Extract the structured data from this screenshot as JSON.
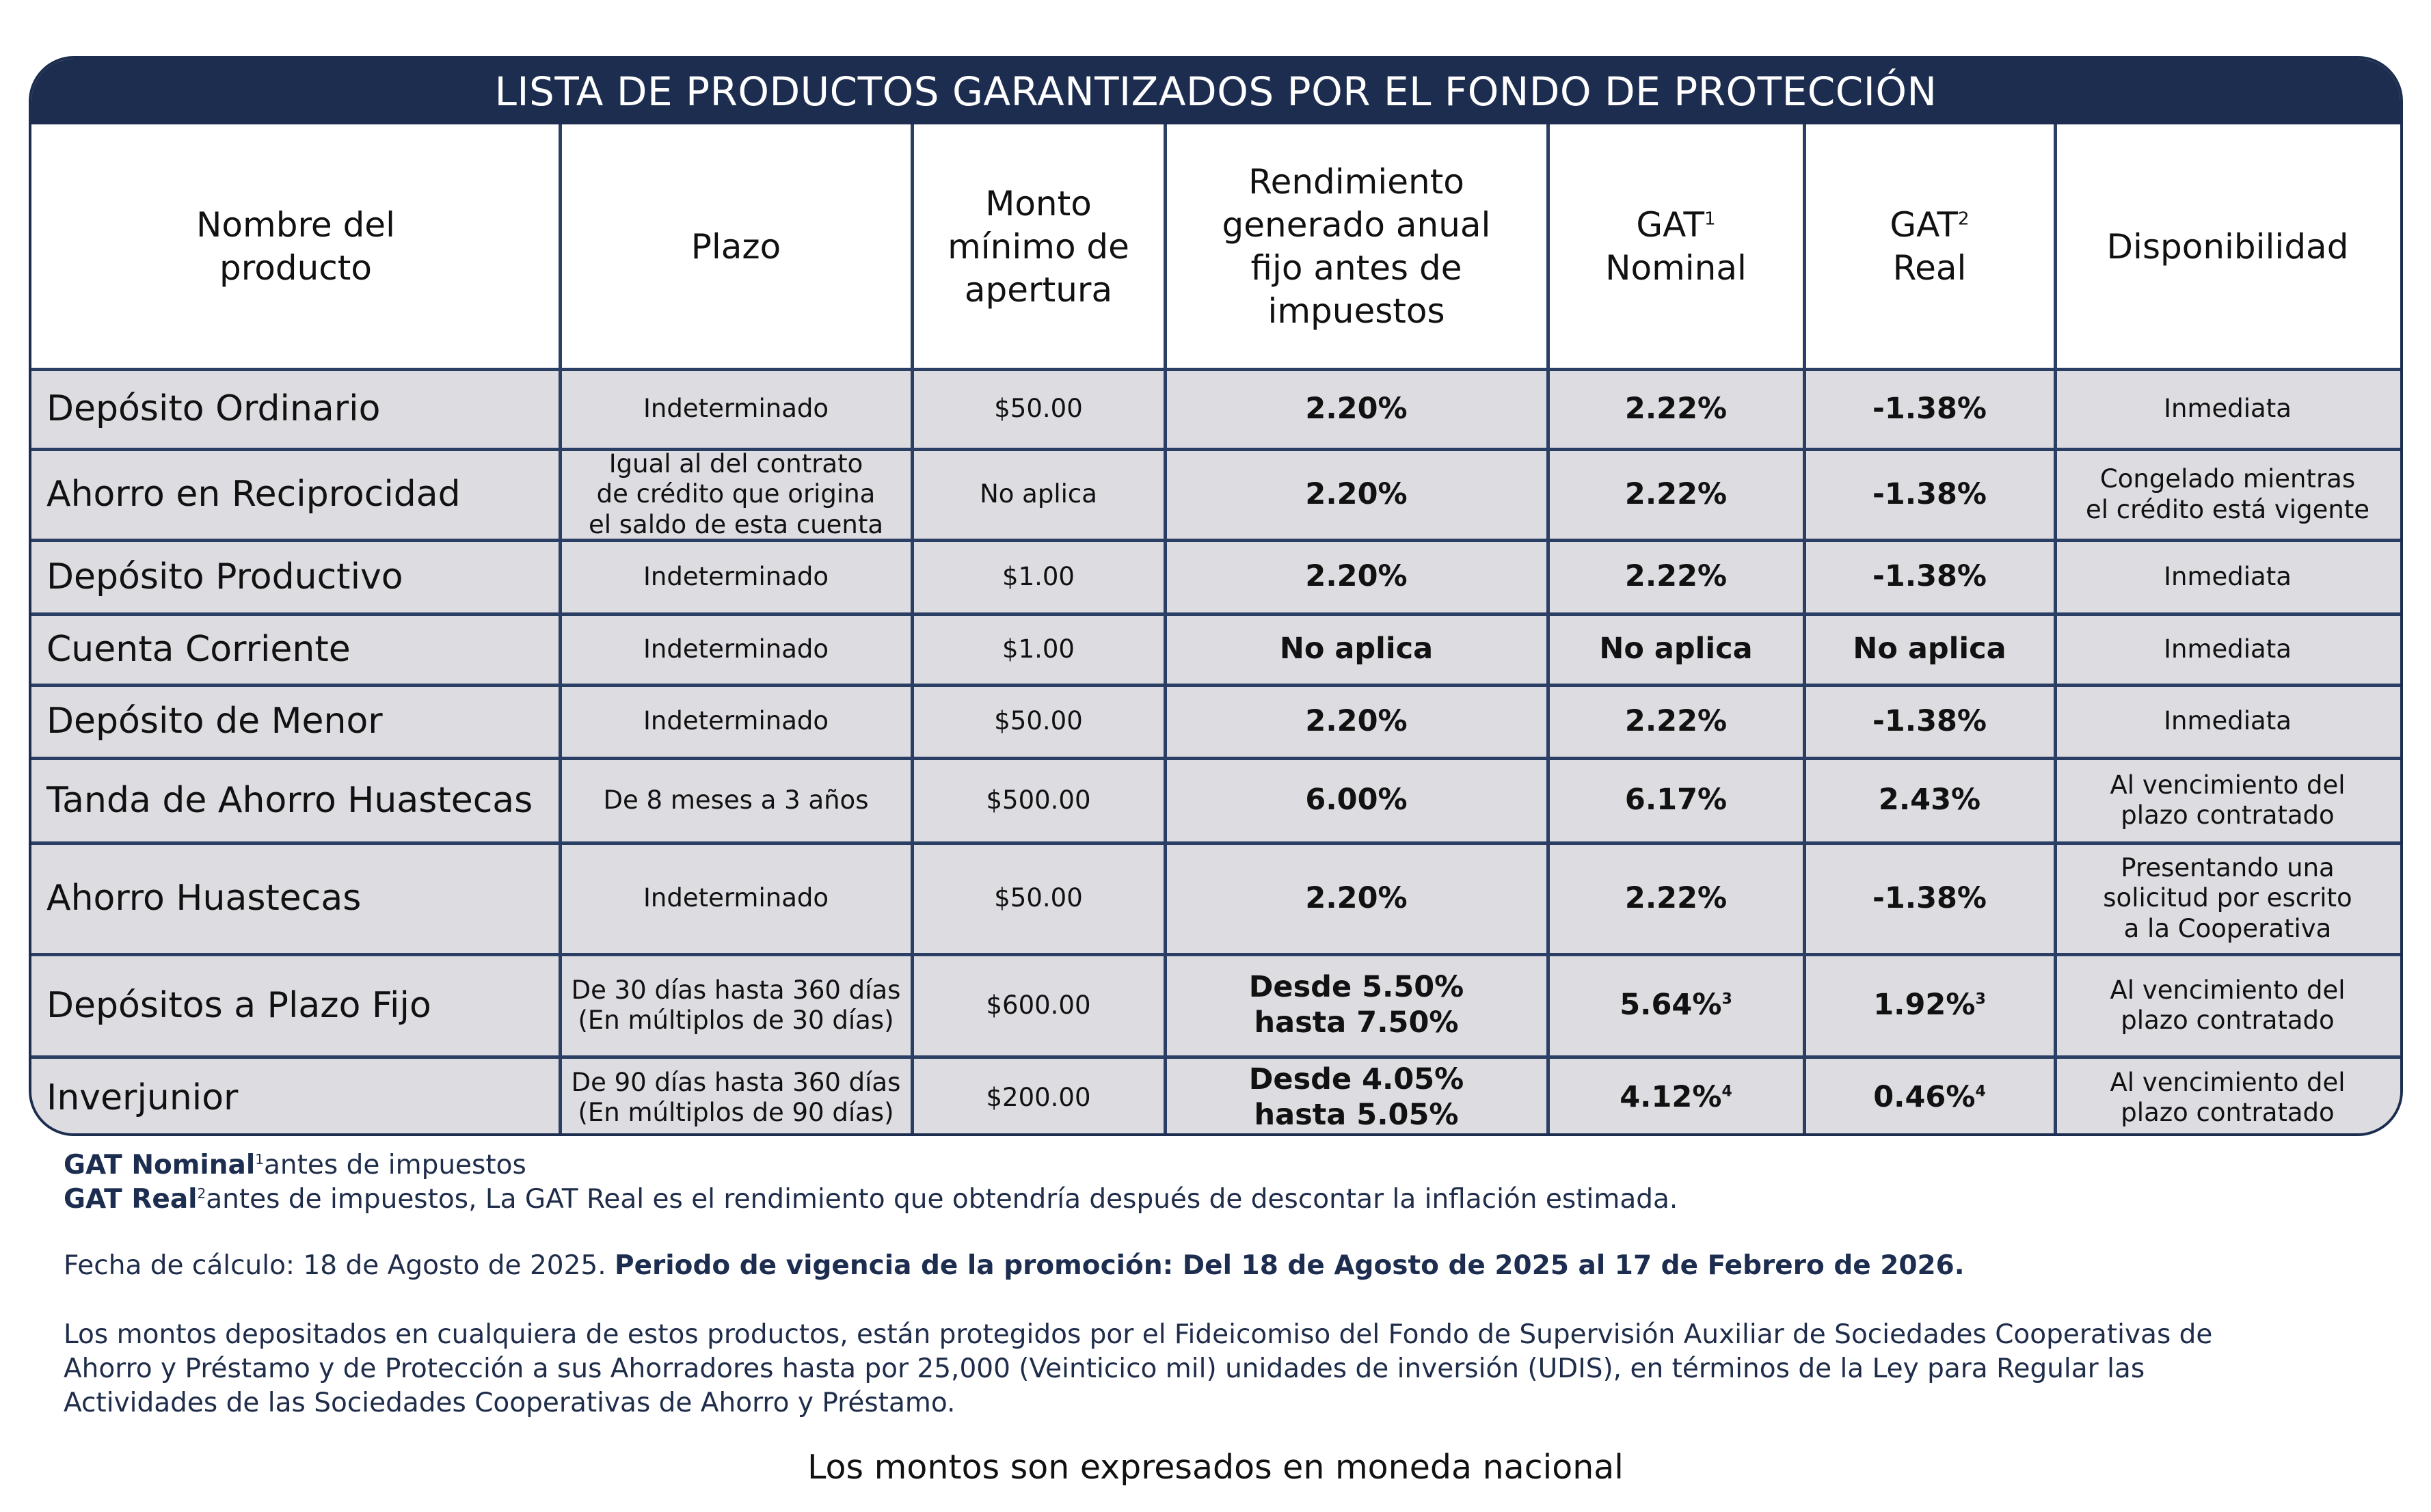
{
  "title": "LISTA DE PRODUCTOS GARANTIZADOS POR EL FONDO DE PROTECCIÓN",
  "colors": {
    "navy": "#1c2d4f",
    "row_gray": "#dcdce1"
  },
  "headers": {
    "nombre": [
      "Nombre del",
      "producto"
    ],
    "plazo": "Plazo",
    "monto": [
      "Monto",
      "mínimo de",
      "apertura"
    ],
    "rendimiento": [
      "Rendimiento",
      "generado anual",
      "fijo antes de",
      "impuestos"
    ],
    "gat_nominal": {
      "l1": "GAT",
      "sup": "1",
      "l2": "Nominal"
    },
    "gat_real": {
      "l1": "GAT",
      "sup": "2",
      "l2": "Real"
    },
    "disponibilidad": "Disponibilidad"
  },
  "rows": [
    {
      "name": "Depósito Ordinario",
      "plazo": [
        "Indeterminado"
      ],
      "monto": "$50.00",
      "rendimiento": [
        "2.20%"
      ],
      "gat_nominal": "2.22%",
      "gat_nominal_note": "",
      "gat_real": "-1.38%",
      "gat_real_note": "",
      "disponibilidad": [
        "Inmediata"
      ]
    },
    {
      "name": "Ahorro en Reciprocidad",
      "plazo": [
        "Igual al del contrato",
        "de crédito que origina",
        "el saldo de esta cuenta"
      ],
      "monto": "No aplica",
      "rendimiento": [
        "2.20%"
      ],
      "gat_nominal": "2.22%",
      "gat_nominal_note": "",
      "gat_real": "-1.38%",
      "gat_real_note": "",
      "disponibilidad": [
        "Congelado mientras",
        "el crédito está vigente"
      ]
    },
    {
      "name": "Depósito Productivo",
      "plazo": [
        "Indeterminado"
      ],
      "monto": "$1.00",
      "rendimiento": [
        "2.20%"
      ],
      "gat_nominal": "2.22%",
      "gat_nominal_note": "",
      "gat_real": "-1.38%",
      "gat_real_note": "",
      "disponibilidad": [
        "Inmediata"
      ]
    },
    {
      "name": "Cuenta Corriente",
      "plazo": [
        "Indeterminado"
      ],
      "monto": "$1.00",
      "rendimiento": [
        "No aplica"
      ],
      "gat_nominal": "No aplica",
      "gat_nominal_note": "",
      "gat_real": "No aplica",
      "gat_real_note": "",
      "disponibilidad": [
        "Inmediata"
      ]
    },
    {
      "name": "Depósito de Menor",
      "plazo": [
        "Indeterminado"
      ],
      "monto": "$50.00",
      "rendimiento": [
        "2.20%"
      ],
      "gat_nominal": "2.22%",
      "gat_nominal_note": "",
      "gat_real": "-1.38%",
      "gat_real_note": "",
      "disponibilidad": [
        "Inmediata"
      ]
    },
    {
      "name": "Tanda de Ahorro Huastecas",
      "plazo": [
        "De 8 meses a 3 años"
      ],
      "monto": "$500.00",
      "rendimiento": [
        "6.00%"
      ],
      "gat_nominal": "6.17%",
      "gat_nominal_note": "",
      "gat_real": "2.43%",
      "gat_real_note": "",
      "disponibilidad": [
        "Al vencimiento del",
        "plazo contratado"
      ]
    },
    {
      "name": "Ahorro Huastecas",
      "plazo": [
        "Indeterminado"
      ],
      "monto": "$50.00",
      "rendimiento": [
        "2.20%"
      ],
      "gat_nominal": "2.22%",
      "gat_nominal_note": "",
      "gat_real": "-1.38%",
      "gat_real_note": "",
      "disponibilidad": [
        "Presentando una",
        "solicitud por escrito",
        "a la Cooperativa"
      ]
    },
    {
      "name": "Depósitos a Plazo Fijo",
      "plazo": [
        "De 30 días hasta 360 días",
        "(En múltiplos de 30 días)"
      ],
      "monto": "$600.00",
      "rendimiento": [
        "Desde 5.50%",
        "hasta 7.50%"
      ],
      "gat_nominal": "5.64%",
      "gat_nominal_note": "3",
      "gat_real": "1.92%",
      "gat_real_note": "3",
      "disponibilidad": [
        "Al vencimiento del",
        "plazo contratado"
      ]
    },
    {
      "name": "Inverjunior",
      "plazo": [
        "De 90 días hasta 360 días",
        "(En múltiplos de 90 días)"
      ],
      "monto": "$200.00",
      "rendimiento": [
        "Desde 4.05%",
        "hasta 5.05%"
      ],
      "gat_nominal": "4.12%",
      "gat_nominal_note": "4",
      "gat_real": "0.46%",
      "gat_real_note": "4",
      "disponibilidad": [
        "Al vencimiento del",
        "plazo contratado"
      ]
    }
  ],
  "notes": {
    "gat_nominal_label": "GAT Nominal",
    "gat_nominal_sup": "1",
    "gat_nominal_text": "antes de impuestos",
    "gat_real_label": "GAT Real",
    "gat_real_sup": "2",
    "gat_real_text": "antes de impuestos, La GAT Real es el rendimiento que obtendría después de descontar la inflación estimada.",
    "fecha_calculo": "Fecha de cálculo: 18 de Agosto de 2025.",
    "periodo": "Periodo de vigencia de la promoción: Del 18 de Agosto de 2025 al 17 de Febrero de 2026.",
    "disclaimer_lines": [
      "Los montos depositados en cualquiera de estos productos, están protegidos por el Fideicomiso del Fondo de Supervisión Auxiliar de Sociedades Cooperativas de",
      "Ahorro y Préstamo y de Protección a sus Ahorradores hasta por 25,000 (Veinticico mil) unidades de inversión (UDIS), en términos de la Ley para Regular las",
      "Actividades de las Sociedades Cooperativas de Ahorro y Préstamo."
    ],
    "footer": "Los montos son expresados en moneda nacional"
  }
}
